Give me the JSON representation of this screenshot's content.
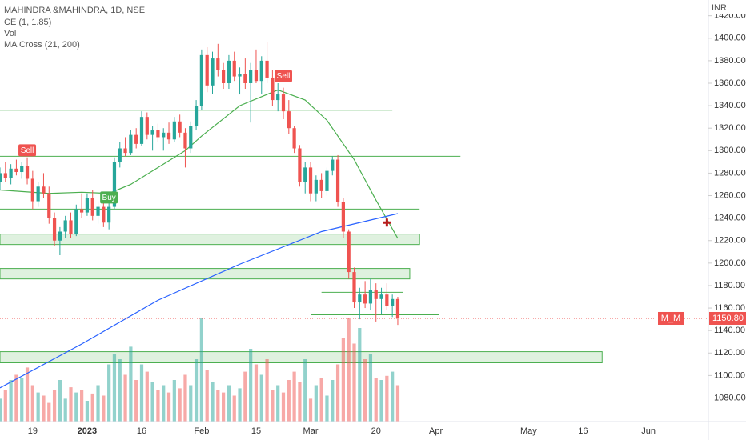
{
  "chart_data": {
    "type": "candlestick",
    "title": "MAHINDRA &MAHINDRA, 1D, NSE",
    "indicators": [
      "CE (1, 1.85)",
      "Vol",
      "MA Cross (21, 200)"
    ],
    "y_axis_label": "INR",
    "x": [
      0,
      1,
      2,
      3,
      4,
      5,
      6,
      7,
      8,
      9,
      10,
      11,
      12,
      13,
      14,
      15,
      16,
      17,
      18,
      19,
      20,
      21,
      22,
      23,
      24,
      25,
      26,
      27,
      28,
      29,
      30,
      31,
      32,
      33,
      34,
      35,
      36,
      37,
      38,
      39,
      40,
      41,
      42,
      43,
      44,
      45,
      46,
      47,
      48,
      49,
      50,
      51,
      52,
      53,
      54,
      55,
      56,
      57,
      58,
      59,
      60,
      61,
      62,
      63,
      64,
      65,
      66,
      67,
      68,
      69,
      70,
      71,
      72,
      73
    ],
    "open": [
      1272,
      1280,
      1276,
      1284,
      1281,
      1286,
      1275,
      1255,
      1268,
      1262,
      1240,
      1220,
      1228,
      1238,
      1226,
      1248,
      1245,
      1258,
      1242,
      1250,
      1236,
      1250,
      1290,
      1302,
      1298,
      1314,
      1306,
      1330,
      1314,
      1318,
      1312,
      1316,
      1310,
      1326,
      1316,
      1302,
      1322,
      1340,
      1385,
      1358,
      1382,
      1372,
      1360,
      1380,
      1366,
      1368,
      1360,
      1372,
      1362,
      1380,
      1365,
      1345,
      1350,
      1335,
      1320,
      1302,
      1272,
      1285,
      1262,
      1274,
      1264,
      1282,
      1292,
      1254,
      1228,
      1192,
      1165,
      1172,
      1164,
      1176,
      1168,
      1172,
      1162,
      1168
    ],
    "high": [
      1285,
      1290,
      1288,
      1292,
      1290,
      1294,
      1282,
      1272,
      1280,
      1268,
      1245,
      1232,
      1242,
      1245,
      1252,
      1262,
      1262,
      1265,
      1255,
      1258,
      1255,
      1294,
      1308,
      1312,
      1318,
      1320,
      1335,
      1334,
      1322,
      1324,
      1320,
      1325,
      1330,
      1332,
      1320,
      1326,
      1345,
      1390,
      1392,
      1388,
      1395,
      1378,
      1385,
      1388,
      1374,
      1382,
      1378,
      1390,
      1384,
      1397,
      1372,
      1360,
      1356,
      1345,
      1322,
      1305,
      1290,
      1290,
      1278,
      1280,
      1285,
      1295,
      1296,
      1258,
      1230,
      1196,
      1178,
      1184,
      1186,
      1182,
      1178,
      1182,
      1172,
      1170
    ],
    "low": [
      1265,
      1272,
      1270,
      1278,
      1275,
      1270,
      1248,
      1250,
      1258,
      1235,
      1215,
      1207,
      1222,
      1222,
      1224,
      1240,
      1242,
      1238,
      1235,
      1232,
      1230,
      1248,
      1285,
      1295,
      1296,
      1302,
      1304,
      1310,
      1300,
      1308,
      1300,
      1306,
      1308,
      1312,
      1285,
      1298,
      1318,
      1336,
      1352,
      1350,
      1366,
      1355,
      1355,
      1362,
      1350,
      1355,
      1325,
      1360,
      1350,
      1360,
      1340,
      1335,
      1328,
      1315,
      1298,
      1268,
      1262,
      1255,
      1255,
      1258,
      1260,
      1278,
      1250,
      1222,
      1186,
      1160,
      1150,
      1160,
      1158,
      1148,
      1155,
      1158,
      1152,
      1145
    ],
    "close": [
      1280,
      1276,
      1284,
      1281,
      1286,
      1275,
      1255,
      1268,
      1262,
      1240,
      1220,
      1228,
      1238,
      1226,
      1248,
      1245,
      1258,
      1242,
      1250,
      1236,
      1250,
      1290,
      1302,
      1298,
      1314,
      1306,
      1330,
      1314,
      1318,
      1312,
      1316,
      1310,
      1326,
      1316,
      1302,
      1322,
      1340,
      1385,
      1358,
      1382,
      1372,
      1360,
      1380,
      1366,
      1368,
      1360,
      1372,
      1362,
      1380,
      1365,
      1345,
      1350,
      1335,
      1320,
      1302,
      1272,
      1285,
      1262,
      1274,
      1264,
      1282,
      1292,
      1254,
      1228,
      1192,
      1165,
      1172,
      1164,
      1176,
      1168,
      1172,
      1162,
      1168,
      1150.8
    ],
    "volume": [
      22,
      30,
      40,
      45,
      42,
      52,
      35,
      28,
      25,
      18,
      30,
      40,
      22,
      33,
      28,
      30,
      20,
      27,
      35,
      25,
      55,
      65,
      60,
      45,
      72,
      40,
      55,
      48,
      38,
      30,
      35,
      28,
      40,
      32,
      45,
      35,
      60,
      100,
      50,
      38,
      30,
      28,
      35,
      25,
      32,
      48,
      70,
      55,
      45,
      60,
      30,
      35,
      28,
      40,
      48,
      38,
      60,
      22,
      35,
      42,
      25,
      40,
      55,
      80,
      100,
      75,
      90,
      60,
      65,
      42,
      40,
      44,
      48,
      35
    ],
    "up_color": "#26a69a",
    "down_color": "#ef5350",
    "volume_up_color": "rgba(38,166,154,0.5)",
    "volume_down_color": "rgba(239,83,80,0.5)",
    "ma_lines": [
      {
        "color": "#4caf50",
        "x": [
          0,
          9,
          15,
          20,
          24,
          29,
          34,
          37,
          44,
          51,
          56,
          60,
          65,
          69,
          73
        ],
        "values": [
          1265,
          1262,
          1263,
          1262,
          1270,
          1285,
          1300,
          1313,
          1340,
          1354,
          1345,
          1327,
          1292,
          1256,
          1222
        ]
      },
      {
        "color": "#2962ff",
        "x": [
          0,
          15,
          29,
          44,
          59,
          73
        ],
        "values": [
          1089,
          1128,
          1167,
          1199,
          1228,
          1244
        ]
      }
    ],
    "levels": [
      {
        "price": 1336,
        "x_start": 0,
        "x_end": 72
      },
      {
        "price": 1295,
        "x_start": 0,
        "x_end": 84.5
      },
      {
        "price": 1248,
        "x_start": 0,
        "x_end": 77
      },
      {
        "price": 1174,
        "x_start": 59,
        "x_end": 74
      },
      {
        "price": 1154,
        "x_start": 57,
        "x_end": 80.5
      }
    ],
    "zones": [
      {
        "low": 1216.5,
        "high": 1225.8,
        "x_start": 0,
        "x_end": 77
      },
      {
        "low": 1185.9,
        "high": 1195.2,
        "x_start": 0,
        "x_end": 75.2
      },
      {
        "low": 1111.3,
        "high": 1121.2,
        "x_start": 0,
        "x_end": 110.5
      }
    ],
    "level_color": "#4caf50",
    "zone_fill": "rgba(76,175,80,0.18)",
    "signals": [
      {
        "label": "Sell",
        "x": 5,
        "price": 1300,
        "color": "#ef5350"
      },
      {
        "label": "Buy",
        "x": 20,
        "price": 1258,
        "color": "#4caf50"
      },
      {
        "label": "Sell",
        "x": 52,
        "price": 1366,
        "color": "#ef5350"
      }
    ],
    "cross_marker": {
      "x": 71,
      "price": 1236,
      "color": "#b71c1c"
    },
    "last_price": 1150.8,
    "last_price_label": "1150.80",
    "symbol_tag": "M_M",
    "xlim": [
      0,
      130
    ],
    "ylim": [
      1059,
      1434
    ],
    "yticks": [
      {
        "value": 1080,
        "label": "1080.00"
      },
      {
        "value": 1100,
        "label": "1100.00"
      },
      {
        "value": 1120,
        "label": "1120.00"
      },
      {
        "value": 1140,
        "label": "1140.00"
      },
      {
        "value": 1160,
        "label": "1160.00"
      },
      {
        "value": 1180,
        "label": "1180.00"
      },
      {
        "value": 1200,
        "label": "1200.00"
      },
      {
        "value": 1220,
        "label": "1220.00"
      },
      {
        "value": 1240,
        "label": "1240.00"
      },
      {
        "value": 1260,
        "label": "1260.00"
      },
      {
        "value": 1280,
        "label": "1280.00"
      },
      {
        "value": 1300,
        "label": "1300.00"
      },
      {
        "value": 1320,
        "label": "1320.00"
      },
      {
        "value": 1340,
        "label": "1340.00"
      },
      {
        "value": 1360,
        "label": "1360.00"
      },
      {
        "value": 1380,
        "label": "1380.00"
      },
      {
        "value": 1400,
        "label": "1400.00"
      },
      {
        "value": 1420,
        "label": "1420.00"
      }
    ],
    "xticks": [
      {
        "value": 6,
        "label": "19"
      },
      {
        "value": 16,
        "label": "2023"
      },
      {
        "value": 26,
        "label": "16"
      },
      {
        "value": 37,
        "label": "Feb"
      },
      {
        "value": 47,
        "label": "15"
      },
      {
        "value": 57,
        "label": "Mar"
      },
      {
        "value": 69,
        "label": "20"
      },
      {
        "value": 80,
        "label": "Apr"
      },
      {
        "value": 97,
        "label": "May"
      },
      {
        "value": 107,
        "label": "16"
      },
      {
        "value": 119,
        "label": "Jun"
      }
    ]
  }
}
